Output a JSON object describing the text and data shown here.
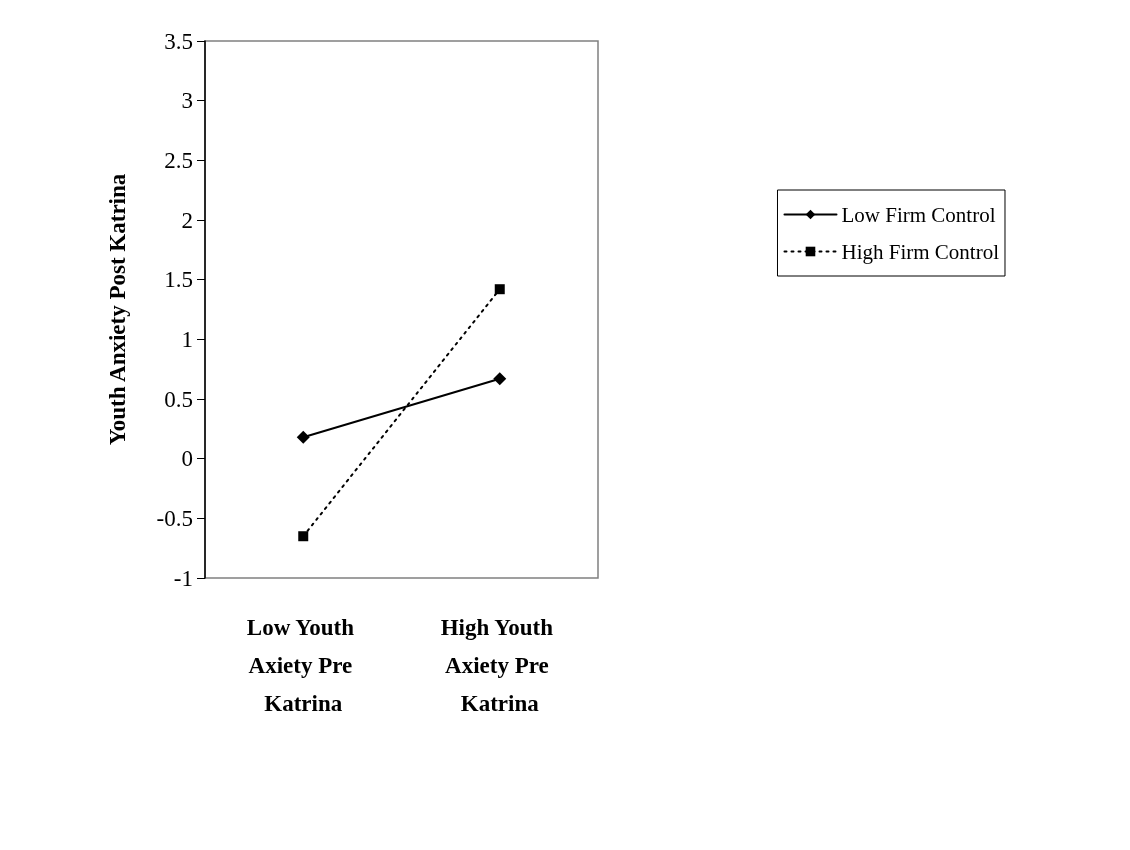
{
  "chart_data": {
    "type": "line",
    "ylabel": "Youth Anxiety Post Katrina",
    "categories": [
      "Low Youth Axiety Pre Katrina",
      "High Youth Axiety Pre Katrina"
    ],
    "series": [
      {
        "name": "Low Firm Control",
        "color": "#000000",
        "values": [
          0.18,
          0.67
        ],
        "marker": "diamond",
        "line_style": "solid"
      },
      {
        "name": "High Firm Control",
        "color": "#000000",
        "values": [
          -0.65,
          1.42
        ],
        "marker": "square",
        "line_style": "dotted"
      }
    ],
    "ylim": [
      -1,
      3.5
    ],
    "yticks": [
      -1,
      -0.5,
      0,
      0.5,
      1,
      1.5,
      2,
      2.5,
      3,
      3.5
    ],
    "grid": false,
    "legend": "right"
  }
}
